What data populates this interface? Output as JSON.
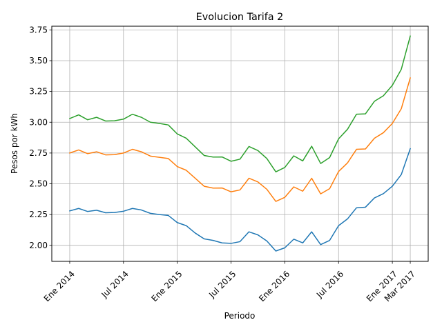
{
  "chart_data": {
    "type": "line",
    "title": "Evolucion Tarifa 2",
    "xlabel": "Periodo",
    "ylabel": "Pesos por kWh",
    "grid": true,
    "legend": "none",
    "x": [
      "2014-01",
      "2014-02",
      "2014-03",
      "2014-04",
      "2014-05",
      "2014-06",
      "2014-07",
      "2014-08",
      "2014-09",
      "2014-10",
      "2014-11",
      "2014-12",
      "2015-01",
      "2015-02",
      "2015-03",
      "2015-04",
      "2015-05",
      "2015-06",
      "2015-07",
      "2015-08",
      "2015-09",
      "2015-10",
      "2015-11",
      "2015-12",
      "2016-01",
      "2016-02",
      "2016-03",
      "2016-04",
      "2016-05",
      "2016-06",
      "2016-07",
      "2016-08",
      "2016-09",
      "2016-10",
      "2016-11",
      "2016-12",
      "2017-01",
      "2017-02",
      "2017-03"
    ],
    "xlim": [
      "2013-11",
      "2017-05"
    ],
    "ylim": [
      1.87,
      3.78
    ],
    "x_ticks": [
      {
        "value": "2014-01",
        "label": "Ene 2014"
      },
      {
        "value": "2014-07",
        "label": "Jul 2014"
      },
      {
        "value": "2015-01",
        "label": "Ene 2015"
      },
      {
        "value": "2015-07",
        "label": "Jul 2015"
      },
      {
        "value": "2016-01",
        "label": "Ene 2016"
      },
      {
        "value": "2016-07",
        "label": "Jul 2016"
      },
      {
        "value": "2017-01",
        "label": "Ene 2017"
      },
      {
        "value": "2017-03",
        "label": "Mar 2017"
      }
    ],
    "y_ticks": [
      {
        "value": 2.0,
        "label": "2.00"
      },
      {
        "value": 2.25,
        "label": "2.25"
      },
      {
        "value": 2.5,
        "label": "2.50"
      },
      {
        "value": 2.75,
        "label": "2.75"
      },
      {
        "value": 3.0,
        "label": "3.00"
      },
      {
        "value": 3.25,
        "label": "3.25"
      },
      {
        "value": 3.5,
        "label": "3.50"
      },
      {
        "value": 3.75,
        "label": "3.75"
      }
    ],
    "series": [
      {
        "color": "#1f77b4",
        "values": [
          2.28,
          2.3,
          2.275,
          2.285,
          2.265,
          2.267,
          2.277,
          2.3,
          2.287,
          2.26,
          2.25,
          2.243,
          2.185,
          2.16,
          2.1,
          2.053,
          2.04,
          2.02,
          2.016,
          2.03,
          2.11,
          2.085,
          2.035,
          1.954,
          1.98,
          2.05,
          2.02,
          2.11,
          2.006,
          2.04,
          2.16,
          2.215,
          2.305,
          2.31,
          2.385,
          2.42,
          2.48,
          2.575,
          2.785
        ]
      },
      {
        "color": "#ff7f0e",
        "values": [
          2.75,
          2.775,
          2.745,
          2.76,
          2.735,
          2.737,
          2.75,
          2.78,
          2.76,
          2.725,
          2.715,
          2.705,
          2.64,
          2.61,
          2.545,
          2.48,
          2.465,
          2.466,
          2.435,
          2.45,
          2.545,
          2.515,
          2.455,
          2.357,
          2.39,
          2.475,
          2.44,
          2.545,
          2.418,
          2.46,
          2.6,
          2.67,
          2.78,
          2.783,
          2.87,
          2.915,
          2.99,
          3.11,
          3.36
        ]
      },
      {
        "color": "#2ca02c",
        "values": [
          3.03,
          3.06,
          3.02,
          3.04,
          3.01,
          3.012,
          3.025,
          3.065,
          3.04,
          3.0,
          2.99,
          2.978,
          2.905,
          2.87,
          2.8,
          2.73,
          2.717,
          2.718,
          2.683,
          2.7,
          2.803,
          2.77,
          2.705,
          2.597,
          2.633,
          2.727,
          2.686,
          2.805,
          2.665,
          2.713,
          2.865,
          2.943,
          3.065,
          3.068,
          3.17,
          3.215,
          3.3,
          3.43,
          3.7
        ]
      }
    ]
  }
}
